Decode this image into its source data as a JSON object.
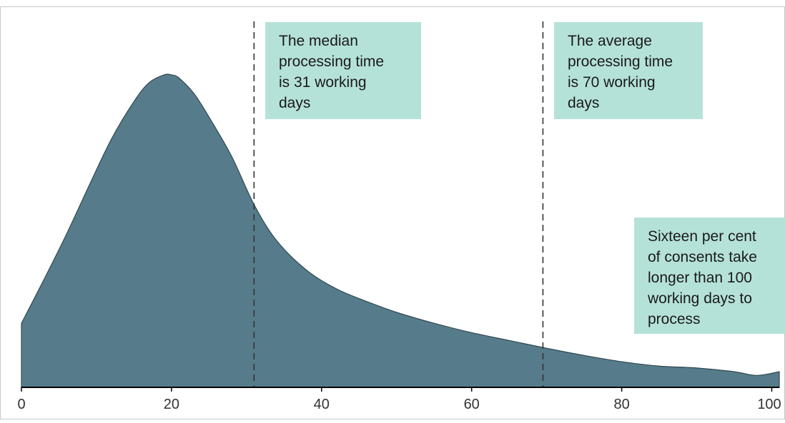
{
  "colors": {
    "area_fill": "#567c8b",
    "area_stroke": "#2f4750",
    "annotation_box": "#b5e2d8",
    "axis": "#000000",
    "reference_line": "#333333",
    "frame": "#c8c8c8"
  },
  "chart_data": {
    "type": "area",
    "title": "",
    "xlabel": "",
    "ylabel": "",
    "xlim": [
      0,
      101
    ],
    "ylim": [
      0,
      1
    ],
    "x_ticks": [
      "0",
      "20",
      "40",
      "60",
      "80",
      "100"
    ],
    "grid": false,
    "legend": "none",
    "series": [
      {
        "x": [
          0,
          3,
          6,
          9,
          12,
          15,
          17,
          19,
          20,
          21,
          23,
          25,
          28,
          31,
          34,
          38,
          42,
          46,
          50,
          55,
          60,
          65,
          70,
          75,
          80,
          85,
          90,
          95,
          98,
          101
        ],
        "y": [
          0.205,
          0.345,
          0.49,
          0.645,
          0.795,
          0.915,
          0.975,
          1.0,
          1.0,
          0.99,
          0.94,
          0.865,
          0.74,
          0.585,
          0.47,
          0.375,
          0.315,
          0.275,
          0.24,
          0.205,
          0.175,
          0.15,
          0.125,
          0.102,
          0.082,
          0.068,
          0.062,
          0.05,
          0.038,
          0.05
        ]
      }
    ],
    "reference_lines": [
      {
        "x": 31,
        "style": "dashed",
        "label": "The median processing time is 31 working days"
      },
      {
        "x": 69.5,
        "style": "dashed",
        "label": "The average processing time is 70 working days"
      }
    ],
    "annotations": [
      {
        "lines": [
          "The median",
          "processing time",
          "is 31 working",
          "days"
        ]
      },
      {
        "lines": [
          "The average",
          "processing time",
          "is 70 working",
          "days"
        ]
      },
      {
        "lines": [
          "Sixteen per cent",
          "of consents take",
          "longer than  100",
          "working days to",
          "process"
        ]
      }
    ]
  }
}
